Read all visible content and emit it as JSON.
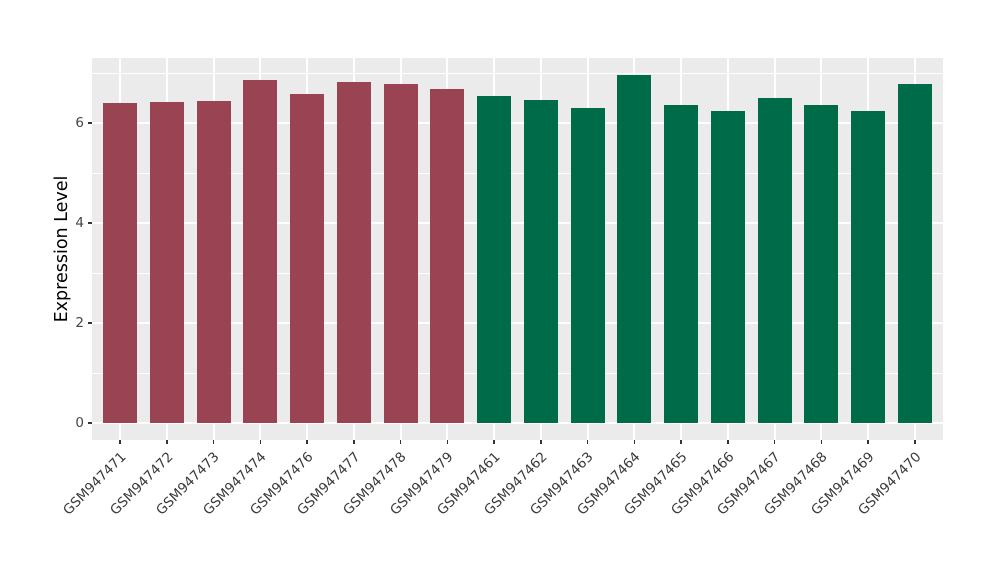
{
  "chart_data": {
    "type": "bar",
    "title": "",
    "ylabel": "Expression Level",
    "xlabel": "",
    "categories": [
      "GSM947471",
      "GSM947472",
      "GSM947473",
      "GSM947474",
      "GSM947476",
      "GSM947477",
      "GSM947478",
      "GSM947479",
      "GSM947461",
      "GSM947462",
      "GSM947463",
      "GSM947464",
      "GSM947465",
      "GSM947466",
      "GSM947467",
      "GSM947468",
      "GSM947469",
      "GSM947470"
    ],
    "values": [
      6.4,
      6.43,
      6.45,
      6.86,
      6.59,
      6.82,
      6.79,
      6.69,
      6.55,
      6.46,
      6.31,
      6.97,
      6.37,
      6.25,
      6.51,
      6.36,
      6.24,
      6.78
    ],
    "bar_colors": [
      "#9A4352",
      "#9A4352",
      "#9A4352",
      "#9A4352",
      "#9A4352",
      "#9A4352",
      "#9A4352",
      "#9A4352",
      "#006B48",
      "#006B48",
      "#006B48",
      "#006B48",
      "#006B48",
      "#006B48",
      "#006B48",
      "#006B48",
      "#006B48",
      "#006B48"
    ],
    "palette": {
      "group1": "#9A4352",
      "group2": "#006B48"
    },
    "ylim": [
      -0.35,
      7.3
    ],
    "y_ticks_major": [
      0,
      2,
      4,
      6
    ],
    "y_ticks_minor": [
      1,
      3,
      5,
      7
    ],
    "grid": true,
    "legend": "none",
    "panel_background": "#EBEBEB",
    "gridline_color": "#FFFFFF",
    "axis_text_color": "#454545",
    "axis_title_color": "#000000"
  }
}
